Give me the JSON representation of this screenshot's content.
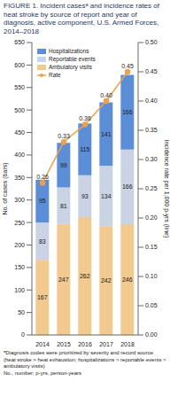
{
  "chart_data": {
    "type": "bar",
    "title": "FIGURE 1. Incident casesᵃ and incidence rates of heat stroke by source of report and year of diagnosis, active component, U.S. Armed Forces, 2014–2018",
    "categories": [
      "2014",
      "2015",
      "2016",
      "2017",
      "2018"
    ],
    "stacked": true,
    "data_labels": true,
    "legend": "upper left",
    "grid": false,
    "y_label": "No. of cases (bars)",
    "y2_label": "Incidence rate per 1,000 p-yrs (line)",
    "ylim": [
      0,
      650
    ],
    "yticks": [
      0,
      50,
      100,
      150,
      200,
      250,
      300,
      350,
      400,
      450,
      500,
      550,
      600,
      650
    ],
    "y2lim": [
      0,
      0.5
    ],
    "y2ticks": [
      {
        "value": 0,
        "label": "0.00"
      },
      {
        "value": 0.05,
        "label": "0.05"
      },
      {
        "value": 0.1,
        "label": "0.10"
      },
      {
        "value": 0.15,
        "label": "0.15"
      },
      {
        "value": 0.2,
        "label": "0.20"
      },
      {
        "value": 0.25,
        "label": "0.25"
      },
      {
        "value": 0.3,
        "label": "0.30"
      },
      {
        "value": 0.35,
        "label": "0.35"
      },
      {
        "value": 0.4,
        "label": "0.40"
      },
      {
        "value": 0.45,
        "label": "0.45"
      },
      {
        "value": 0.5,
        "label": "0.50"
      }
    ],
    "series": [
      {
        "name": "Hospitalizations",
        "type": "bar",
        "color": "#5b8ed6",
        "values": [
          95,
          99,
          115,
          141,
          166
        ]
      },
      {
        "name": "Reportable events",
        "type": "bar",
        "color": "#c9d3e3",
        "values": [
          83,
          81,
          93,
          134,
          166
        ]
      },
      {
        "name": "Ambulatory visits",
        "type": "bar",
        "color": "#f2c98e",
        "values": [
          167,
          247,
          262,
          242,
          246
        ]
      },
      {
        "name": "Rate",
        "type": "line",
        "axis": "y2",
        "color": "#f0a04a",
        "marker": "circle",
        "values": [
          0.26,
          0.33,
          0.36,
          0.4,
          0.45
        ],
        "value_labels": [
          "0.26",
          "0.33",
          "0.36",
          "0.40",
          "0.45"
        ]
      }
    ],
    "notes": [
      "ᵃDiagnosis codes were prioritized by severity and record source (heat stroke > heat exhaustion; hospitalizations > reportable events > ambulatory visits)",
      "No., number; p-yrs, person-years"
    ]
  }
}
